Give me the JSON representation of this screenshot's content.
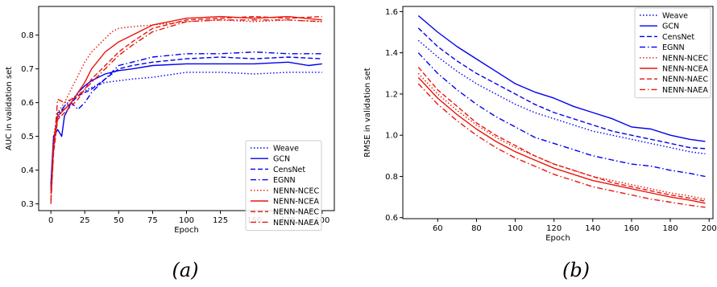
{
  "colors": {
    "blue": "#0000ee",
    "red": "#e8160c",
    "axis": "#000000",
    "legend_border": "#cccccc"
  },
  "panels": [
    {
      "caption": "(a)"
    },
    {
      "caption": "(b)"
    }
  ],
  "chart_data": [
    {
      "type": "line",
      "title": "",
      "xlabel": "Epoch",
      "ylabel": "AUC in validation set",
      "xlim": [
        -9,
        209
      ],
      "ylim": [
        0.28,
        0.885
      ],
      "xticks": [
        0,
        25,
        50,
        75,
        100,
        125,
        150,
        175,
        200
      ],
      "yticks": [
        0.3,
        0.4,
        0.5,
        0.6,
        0.7,
        0.8
      ],
      "ytick_labels": [
        "0.3",
        "0.4",
        "0.5",
        "0.6",
        "0.7",
        "0.8"
      ],
      "grid": false,
      "legend_position": "lower-right",
      "series": [
        {
          "name": "Weave",
          "color": "blue",
          "dash": "dotted",
          "x": [
            0,
            2,
            5,
            10,
            15,
            20,
            25,
            30,
            40,
            50,
            60,
            75,
            100,
            125,
            150,
            175,
            200
          ],
          "y": [
            0.35,
            0.49,
            0.55,
            0.59,
            0.61,
            0.625,
            0.635,
            0.645,
            0.66,
            0.665,
            0.67,
            0.675,
            0.69,
            0.69,
            0.685,
            0.69,
            0.69
          ]
        },
        {
          "name": "GCN",
          "color": "blue",
          "dash": "solid",
          "x": [
            0,
            2,
            5,
            8,
            10,
            15,
            20,
            25,
            30,
            40,
            50,
            60,
            75,
            100,
            125,
            150,
            175,
            190,
            200
          ],
          "y": [
            0.36,
            0.5,
            0.52,
            0.5,
            0.56,
            0.6,
            0.63,
            0.65,
            0.665,
            0.685,
            0.695,
            0.7,
            0.71,
            0.715,
            0.715,
            0.715,
            0.72,
            0.71,
            0.715
          ]
        },
        {
          "name": "CensNet",
          "color": "blue",
          "dash": "dashed",
          "x": [
            0,
            2,
            5,
            10,
            15,
            20,
            25,
            30,
            40,
            50,
            60,
            75,
            100,
            125,
            150,
            175,
            200
          ],
          "y": [
            0.35,
            0.48,
            0.57,
            0.58,
            0.6,
            0.62,
            0.63,
            0.64,
            0.67,
            0.7,
            0.71,
            0.72,
            0.73,
            0.735,
            0.73,
            0.735,
            0.73
          ]
        },
        {
          "name": "EGNN",
          "color": "blue",
          "dash": "dashdot",
          "x": [
            0,
            2,
            5,
            10,
            15,
            20,
            25,
            30,
            40,
            50,
            60,
            75,
            100,
            125,
            150,
            175,
            200
          ],
          "y": [
            0.34,
            0.46,
            0.56,
            0.59,
            0.6,
            0.58,
            0.6,
            0.63,
            0.67,
            0.71,
            0.72,
            0.735,
            0.745,
            0.745,
            0.75,
            0.745,
            0.745
          ]
        },
        {
          "name": "NENN-NCEC",
          "color": "red",
          "dash": "dotted",
          "x": [
            0,
            2,
            5,
            10,
            15,
            20,
            25,
            30,
            35,
            40,
            45,
            50,
            60,
            75,
            100,
            125,
            150,
            175,
            200
          ],
          "y": [
            0.32,
            0.5,
            0.57,
            0.6,
            0.64,
            0.68,
            0.72,
            0.75,
            0.77,
            0.79,
            0.81,
            0.82,
            0.825,
            0.83,
            0.84,
            0.845,
            0.84,
            0.845,
            0.84
          ]
        },
        {
          "name": "NENN-NCEA",
          "color": "red",
          "dash": "solid",
          "x": [
            0,
            2,
            5,
            10,
            15,
            20,
            25,
            30,
            40,
            50,
            60,
            75,
            100,
            125,
            150,
            175,
            200
          ],
          "y": [
            0.33,
            0.47,
            0.56,
            0.58,
            0.6,
            0.63,
            0.66,
            0.7,
            0.75,
            0.78,
            0.8,
            0.83,
            0.85,
            0.855,
            0.85,
            0.855,
            0.845
          ]
        },
        {
          "name": "NENN-NAEC",
          "color": "red",
          "dash": "dashed",
          "x": [
            0,
            2,
            5,
            10,
            15,
            20,
            25,
            30,
            40,
            50,
            60,
            75,
            100,
            125,
            150,
            175,
            200
          ],
          "y": [
            0.31,
            0.45,
            0.55,
            0.57,
            0.59,
            0.61,
            0.64,
            0.67,
            0.71,
            0.75,
            0.78,
            0.82,
            0.845,
            0.85,
            0.855,
            0.85,
            0.855
          ]
        },
        {
          "name": "NENN-NAEA",
          "color": "red",
          "dash": "dashdot",
          "x": [
            0,
            2,
            5,
            10,
            15,
            20,
            25,
            30,
            40,
            50,
            60,
            75,
            100,
            125,
            150,
            175,
            200
          ],
          "y": [
            0.3,
            0.46,
            0.61,
            0.6,
            0.61,
            0.62,
            0.64,
            0.66,
            0.7,
            0.74,
            0.77,
            0.81,
            0.84,
            0.845,
            0.845,
            0.845,
            0.84
          ]
        }
      ]
    },
    {
      "type": "line",
      "title": "",
      "xlabel": "Epoch",
      "ylabel": "RMSE in validation set",
      "xlim": [
        42,
        202
      ],
      "ylim": [
        0.595,
        1.625
      ],
      "xticks": [
        60,
        80,
        100,
        120,
        140,
        160,
        180,
        200
      ],
      "yticks": [
        0.6,
        0.8,
        1.0,
        1.2,
        1.4,
        1.6
      ],
      "ytick_labels": [
        "0.6",
        "0.8",
        "1.0",
        "1.2",
        "1.4",
        "1.6"
      ],
      "grid": false,
      "legend_position": "upper-right",
      "series": [
        {
          "name": "Weave",
          "color": "blue",
          "dash": "dotted",
          "x": [
            50,
            60,
            70,
            80,
            90,
            100,
            110,
            120,
            130,
            140,
            150,
            160,
            170,
            180,
            190,
            198
          ],
          "y": [
            1.46,
            1.38,
            1.31,
            1.25,
            1.2,
            1.15,
            1.11,
            1.08,
            1.05,
            1.02,
            1.0,
            0.98,
            0.96,
            0.94,
            0.92,
            0.91
          ]
        },
        {
          "name": "GCN",
          "color": "blue",
          "dash": "solid",
          "x": [
            50,
            60,
            70,
            80,
            90,
            100,
            110,
            120,
            130,
            140,
            150,
            160,
            170,
            180,
            190,
            198
          ],
          "y": [
            1.58,
            1.5,
            1.43,
            1.37,
            1.31,
            1.25,
            1.21,
            1.18,
            1.14,
            1.11,
            1.08,
            1.04,
            1.03,
            1.0,
            0.98,
            0.97
          ]
        },
        {
          "name": "CensNet",
          "color": "blue",
          "dash": "dashed",
          "x": [
            50,
            60,
            70,
            80,
            90,
            100,
            110,
            120,
            130,
            140,
            150,
            160,
            170,
            180,
            190,
            198
          ],
          "y": [
            1.52,
            1.43,
            1.36,
            1.3,
            1.25,
            1.2,
            1.15,
            1.11,
            1.08,
            1.05,
            1.02,
            1.0,
            0.98,
            0.96,
            0.94,
            0.935
          ]
        },
        {
          "name": "EGNN",
          "color": "blue",
          "dash": "dashdot",
          "x": [
            50,
            60,
            70,
            80,
            90,
            100,
            110,
            120,
            130,
            140,
            150,
            160,
            170,
            180,
            190,
            198
          ],
          "y": [
            1.4,
            1.3,
            1.22,
            1.15,
            1.09,
            1.04,
            0.99,
            0.96,
            0.93,
            0.9,
            0.88,
            0.86,
            0.85,
            0.83,
            0.815,
            0.8
          ]
        },
        {
          "name": "NENN-NCEC",
          "color": "red",
          "dash": "dotted",
          "x": [
            50,
            60,
            70,
            80,
            90,
            100,
            110,
            120,
            130,
            140,
            150,
            160,
            170,
            180,
            190,
            198
          ],
          "y": [
            1.3,
            1.2,
            1.12,
            1.05,
            0.99,
            0.94,
            0.9,
            0.86,
            0.83,
            0.8,
            0.78,
            0.76,
            0.74,
            0.72,
            0.705,
            0.69
          ]
        },
        {
          "name": "NENN-NCEA",
          "color": "red",
          "dash": "solid",
          "x": [
            50,
            60,
            70,
            80,
            90,
            100,
            110,
            120,
            130,
            140,
            150,
            160,
            170,
            180,
            190,
            198
          ],
          "y": [
            1.28,
            1.18,
            1.1,
            1.03,
            0.97,
            0.92,
            0.88,
            0.84,
            0.81,
            0.78,
            0.76,
            0.74,
            0.72,
            0.7,
            0.685,
            0.67
          ]
        },
        {
          "name": "NENN-NAEC",
          "color": "red",
          "dash": "dashed",
          "x": [
            50,
            60,
            70,
            80,
            90,
            100,
            110,
            120,
            130,
            140,
            150,
            160,
            170,
            180,
            190,
            198
          ],
          "y": [
            1.33,
            1.22,
            1.14,
            1.06,
            1.0,
            0.95,
            0.9,
            0.86,
            0.83,
            0.8,
            0.77,
            0.75,
            0.73,
            0.71,
            0.695,
            0.68
          ]
        },
        {
          "name": "NENN-NAEA",
          "color": "red",
          "dash": "dashdot",
          "x": [
            50,
            60,
            70,
            80,
            90,
            100,
            110,
            120,
            130,
            140,
            150,
            160,
            170,
            180,
            190,
            198
          ],
          "y": [
            1.25,
            1.15,
            1.07,
            1.0,
            0.94,
            0.89,
            0.85,
            0.81,
            0.78,
            0.75,
            0.73,
            0.71,
            0.69,
            0.675,
            0.66,
            0.65
          ]
        }
      ]
    }
  ]
}
